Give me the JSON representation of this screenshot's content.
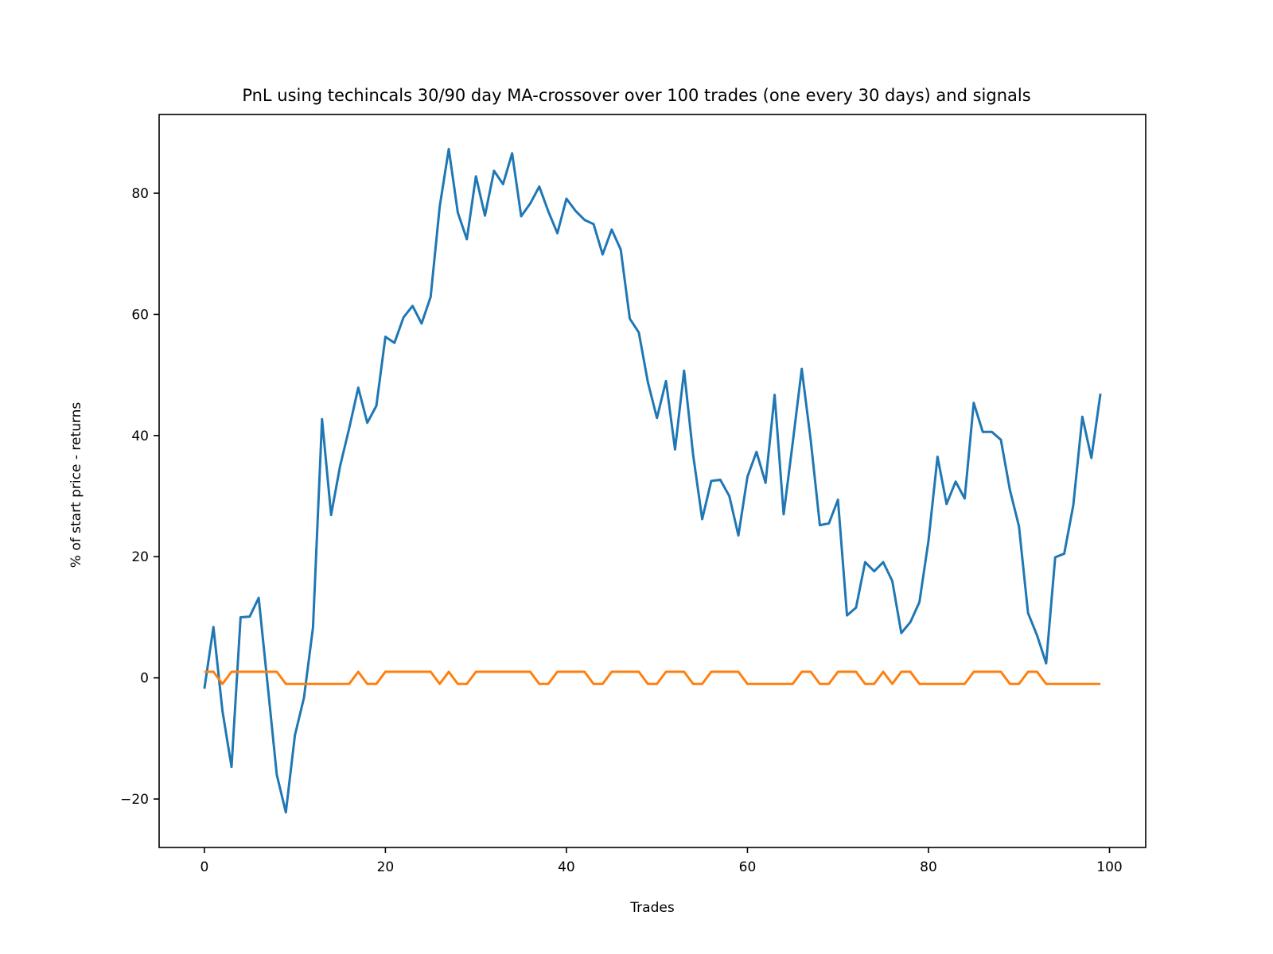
{
  "chart_data": {
    "type": "line",
    "title": "PnL using techincals 30/90 day MA-crossover over 100 trades (one every 30 days) and signals",
    "xlabel": "Trades",
    "ylabel": "% of start price - returns",
    "xlim": [
      -5,
      104
    ],
    "ylim": [
      -28,
      93
    ],
    "xticks": [
      0,
      20,
      40,
      60,
      80,
      100
    ],
    "xtick_labels": [
      "0",
      "20",
      "40",
      "60",
      "80",
      "100"
    ],
    "yticks": [
      -20,
      0,
      20,
      40,
      60,
      80
    ],
    "ytick_labels": [
      "−20",
      "0",
      "20",
      "40",
      "60",
      "80"
    ],
    "grid": false,
    "series": [
      {
        "color": "#1f77b4",
        "x": [
          0,
          1,
          2,
          3,
          4,
          5,
          6,
          7,
          8,
          9,
          10,
          11,
          12,
          13,
          14,
          15,
          16,
          17,
          18,
          19,
          20,
          21,
          22,
          23,
          24,
          25,
          26,
          27,
          28,
          29,
          30,
          31,
          32,
          33,
          34,
          35,
          36,
          37,
          38,
          39,
          40,
          41,
          42,
          43,
          44,
          45,
          46,
          47,
          48,
          49,
          50,
          51,
          52,
          53,
          54,
          55,
          56,
          57,
          58,
          59,
          60,
          61,
          62,
          63,
          64,
          65,
          66,
          67,
          68,
          69,
          70,
          71,
          72,
          73,
          74,
          75,
          76,
          77,
          78,
          79,
          80,
          81,
          82,
          83,
          84,
          85,
          86,
          87,
          88,
          89,
          90,
          91,
          92,
          93,
          94,
          95,
          96,
          97,
          98,
          99
        ],
        "values": [
          -1.8,
          8.4,
          -5.5,
          -14.7,
          10.0,
          10.1,
          13.2,
          -1.3,
          -16.0,
          -22.2,
          -9.5,
          -3.3,
          8.3,
          42.7,
          26.9,
          35.0,
          41.2,
          47.9,
          42.1,
          44.9,
          56.3,
          55.3,
          59.5,
          61.4,
          58.5,
          62.9,
          77.8,
          87.3,
          76.8,
          72.4,
          82.8,
          76.3,
          83.7,
          81.5,
          86.6,
          76.2,
          78.3,
          81.1,
          77.0,
          73.4,
          79.1,
          77.1,
          75.6,
          74.9,
          69.9,
          74.0,
          70.7,
          59.3,
          57.0,
          48.8,
          42.9,
          49.0,
          37.7,
          50.7,
          36.8,
          26.2,
          32.5,
          32.7,
          30.0,
          23.5,
          33.2,
          37.3,
          32.2,
          46.7,
          27.0,
          38.8,
          51.0,
          39.1,
          25.2,
          25.5,
          29.4,
          10.3,
          11.6,
          19.1,
          17.6,
          19.1,
          16.0,
          7.4,
          9.2,
          12.5,
          22.6,
          36.5,
          28.7,
          32.4,
          29.6,
          45.4,
          40.6,
          40.6,
          39.3,
          31.0,
          25.0,
          10.7,
          7.0,
          2.4,
          19.9,
          20.5,
          28.5,
          43.1,
          36.3,
          46.9
        ]
      },
      {
        "color": "#ff7f0e",
        "x": [
          0,
          1,
          2,
          3,
          4,
          5,
          6,
          7,
          8,
          9,
          10,
          11,
          12,
          13,
          14,
          15,
          16,
          17,
          18,
          19,
          20,
          21,
          22,
          23,
          24,
          25,
          26,
          27,
          28,
          29,
          30,
          31,
          32,
          33,
          34,
          35,
          36,
          37,
          38,
          39,
          40,
          41,
          42,
          43,
          44,
          45,
          46,
          47,
          48,
          49,
          50,
          51,
          52,
          53,
          54,
          55,
          56,
          57,
          58,
          59,
          60,
          61,
          62,
          63,
          64,
          65,
          66,
          67,
          68,
          69,
          70,
          71,
          72,
          73,
          74,
          75,
          76,
          77,
          78,
          79,
          80,
          81,
          82,
          83,
          84,
          85,
          86,
          87,
          88,
          89,
          90,
          91,
          92,
          93,
          94,
          95,
          96,
          97,
          98,
          99
        ],
        "values": [
          1,
          1,
          -1,
          1,
          1,
          1,
          1,
          1,
          1,
          -1,
          -1,
          -1,
          -1,
          -1,
          -1,
          -1,
          -1,
          1,
          -1,
          -1,
          1,
          1,
          1,
          1,
          1,
          1,
          -1,
          1,
          -1,
          -1,
          1,
          1,
          1,
          1,
          1,
          1,
          1,
          -1,
          -1,
          1,
          1,
          1,
          1,
          -1,
          -1,
          1,
          1,
          1,
          1,
          -1,
          -1,
          1,
          1,
          1,
          -1,
          -1,
          1,
          1,
          1,
          1,
          -1,
          -1,
          -1,
          -1,
          -1,
          -1,
          1,
          1,
          -1,
          -1,
          1,
          1,
          1,
          -1,
          -1,
          1,
          -1,
          1,
          1,
          -1,
          -1,
          -1,
          -1,
          -1,
          -1,
          1,
          1,
          1,
          1,
          -1,
          -1,
          1,
          1,
          -1,
          -1,
          -1,
          -1,
          -1,
          -1,
          -1
        ]
      }
    ]
  }
}
